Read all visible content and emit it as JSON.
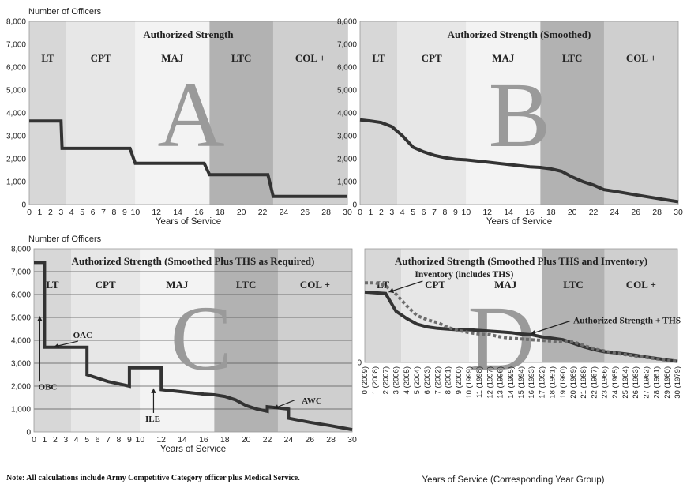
{
  "note": "Note: All calculations include Army Competitive Category officer plus Medical  Service.",
  "chart_data": [
    {
      "id": "A",
      "type": "line",
      "title": "Authorized Strength",
      "panel_letter": "A",
      "ylabel": "Number of Officers",
      "xlabel": "Years of Service",
      "xlim": [
        0,
        30
      ],
      "ylim": [
        0,
        8000
      ],
      "yticks": [
        "0",
        "1,000",
        "2,000",
        "3,000",
        "4,000",
        "5,000",
        "6,000",
        "7,000",
        "8,000"
      ],
      "xticks": [
        "0",
        "1",
        "2",
        "3",
        "4",
        "5",
        "6",
        "7",
        "8",
        "9",
        "10",
        "12",
        "14",
        "16",
        "18",
        "20",
        "22",
        "24",
        "26",
        "28",
        "30"
      ],
      "bands": [
        {
          "label": "LT",
          "x0": 0,
          "x1": 3.5
        },
        {
          "label": "CPT",
          "x0": 3.5,
          "x1": 10
        },
        {
          "label": "MAJ",
          "x0": 10,
          "x1": 17
        },
        {
          "label": "LTC",
          "x0": 17,
          "x1": 23
        },
        {
          "label": "COL +",
          "x0": 23,
          "x1": 30
        }
      ],
      "series": [
        {
          "x": [
            0,
            2,
            3,
            3.1,
            9,
            9.5,
            10,
            16,
            16.5,
            17,
            22,
            22.5,
            23,
            30
          ],
          "y": [
            3650,
            3650,
            3650,
            2450,
            2450,
            2450,
            1800,
            1800,
            1800,
            1300,
            1300,
            1300,
            350,
            350
          ]
        }
      ]
    },
    {
      "id": "B",
      "type": "line",
      "title": "Authorized Strength (Smoothed)",
      "panel_letter": "B",
      "ylabel": "",
      "xlabel": "Years of Service",
      "xlim": [
        0,
        30
      ],
      "ylim": [
        0,
        8000
      ],
      "yticks": [
        "0",
        "1,000",
        "2,000",
        "3,000",
        "4,000",
        "5,000",
        "6,000",
        "7,000",
        "8,000"
      ],
      "xticks": [
        "0",
        "1",
        "2",
        "3",
        "4",
        "5",
        "6",
        "7",
        "8",
        "9",
        "10",
        "12",
        "14",
        "16",
        "18",
        "20",
        "22",
        "24",
        "26",
        "28",
        "30"
      ],
      "bands": [
        {
          "label": "LT",
          "x0": 0,
          "x1": 3.5
        },
        {
          "label": "CPT",
          "x0": 3.5,
          "x1": 10
        },
        {
          "label": "MAJ",
          "x0": 10,
          "x1": 17
        },
        {
          "label": "LTC",
          "x0": 17,
          "x1": 23
        },
        {
          "label": "COL +",
          "x0": 23,
          "x1": 30
        }
      ],
      "series": [
        {
          "x": [
            0,
            1,
            2,
            3,
            4,
            5,
            6,
            7,
            8,
            9,
            10,
            12,
            14,
            16,
            17,
            18,
            19,
            20,
            21,
            22,
            23,
            24,
            26,
            28,
            30
          ],
          "y": [
            3700,
            3650,
            3580,
            3400,
            3000,
            2500,
            2300,
            2150,
            2050,
            1980,
            1950,
            1850,
            1750,
            1650,
            1620,
            1560,
            1450,
            1200,
            1000,
            850,
            650,
            580,
            420,
            270,
            120
          ]
        }
      ]
    },
    {
      "id": "C",
      "type": "line",
      "title": "Authorized Strength (Smoothed Plus THS as Required)",
      "panel_letter": "C",
      "ylabel": "Number of Officers",
      "xlabel": "Years of Service",
      "xlim": [
        0,
        30
      ],
      "ylim": [
        0,
        8000
      ],
      "yticks": [
        "0",
        "1,000",
        "2,000",
        "3,000",
        "4,000",
        "5,000",
        "6,000",
        "7,000",
        "8,000"
      ],
      "xticks": [
        "0",
        "1",
        "2",
        "3",
        "4",
        "5",
        "6",
        "7",
        "8",
        "9",
        "10",
        "12",
        "14",
        "16",
        "18",
        "20",
        "22",
        "24",
        "26",
        "28",
        "30"
      ],
      "bands": [
        {
          "label": "LT",
          "x0": 0,
          "x1": 3.5
        },
        {
          "label": "CPT",
          "x0": 3.5,
          "x1": 10
        },
        {
          "label": "MAJ",
          "x0": 10,
          "x1": 17
        },
        {
          "label": "LTC",
          "x0": 17,
          "x1": 23
        },
        {
          "label": "COL +",
          "x0": 23,
          "x1": 30
        }
      ],
      "series": [
        {
          "x": [
            0,
            0.9,
            1,
            1,
            5,
            5,
            6,
            7,
            8,
            9,
            9,
            12,
            12,
            14,
            16,
            17,
            18,
            19,
            20,
            21,
            22,
            22,
            24,
            24,
            26,
            28,
            30
          ],
          "y": [
            7400,
            7400,
            7400,
            3700,
            3700,
            2500,
            2350,
            2200,
            2100,
            2000,
            2800,
            2800,
            1850,
            1750,
            1650,
            1620,
            1550,
            1400,
            1150,
            1000,
            900,
            1100,
            1000,
            600,
            420,
            270,
            100
          ]
        }
      ],
      "annotations": [
        {
          "text": "OAC",
          "x": 4.6,
          "y": 4100
        },
        {
          "text": "OBC",
          "x": 1.3,
          "y": 1850
        },
        {
          "text": "ILE",
          "x": 11.2,
          "y": 450
        },
        {
          "text": "AWC",
          "x": 26.2,
          "y": 1250
        }
      ]
    },
    {
      "id": "D",
      "type": "line",
      "title": "Authorized Strength (Smoothed Plus THS and Inventory)",
      "panel_letter": "D",
      "ylabel": "",
      "xlabel": "Years of Service (Corresponding Year Group)",
      "xlim": [
        0,
        30
      ],
      "ylim": [
        0,
        8000
      ],
      "xticks": [
        "0 (2009)",
        "1 (2008)",
        "2 (2007)",
        "3 (2006)",
        "4 (2005)",
        "5 (2004)",
        "6 (2003)",
        "7 (2002)",
        "8 (2001)",
        "9 (2000)",
        "10 (1999)",
        "11 (1998)",
        "12 (1997)",
        "13 (1996)",
        "14 (1995)",
        "15 (1994)",
        "16 (1993)",
        "17 (1992)",
        "18 (1991)",
        "19 (1990)",
        "20 (1989)",
        "21 (1988)",
        "22 (1987)",
        "23 (1986)",
        "24 (1985)",
        "25 (1984)",
        "26 (1983)",
        "27 (1982)",
        "28 (1981)",
        "29 (1980)",
        "30 (1979)"
      ],
      "bands": [
        {
          "label": "LT",
          "x0": 0,
          "x1": 3.5
        },
        {
          "label": "CPT",
          "x0": 3.5,
          "x1": 10
        },
        {
          "label": "MAJ",
          "x0": 10,
          "x1": 17
        },
        {
          "label": "LTC",
          "x0": 17,
          "x1": 23
        },
        {
          "label": "COL +",
          "x0": 23,
          "x1": 30
        }
      ],
      "series": [
        {
          "name": "Authorized Strength + THS",
          "style": "solid",
          "x": [
            0,
            2,
            3,
            4,
            5,
            6,
            7,
            8,
            9,
            10,
            11,
            12,
            13,
            14,
            15,
            16,
            17,
            18,
            19,
            20,
            21,
            22,
            23,
            24,
            25,
            26,
            27,
            28,
            29,
            30
          ],
          "y": [
            4950,
            4850,
            3600,
            3100,
            2700,
            2500,
            2400,
            2350,
            2300,
            2300,
            2250,
            2200,
            2150,
            2100,
            2000,
            1950,
            1800,
            1700,
            1600,
            1350,
            1100,
            900,
            750,
            680,
            600,
            500,
            380,
            280,
            180,
            80
          ]
        },
        {
          "name": "Inventory (includes THS)",
          "style": "dotted",
          "x": [
            0,
            1,
            2,
            3,
            4,
            5,
            6,
            7,
            8,
            9,
            10,
            11,
            12,
            13,
            14,
            15,
            16,
            17,
            18,
            19,
            20,
            21,
            22,
            23,
            24,
            25,
            26,
            27,
            28,
            29,
            30
          ],
          "y": [
            5600,
            5600,
            5400,
            4800,
            4000,
            3300,
            3000,
            2800,
            2450,
            2250,
            2100,
            2000,
            1950,
            1800,
            1700,
            1650,
            1600,
            1550,
            1500,
            1450,
            1450,
            1200,
            950,
            800,
            650,
            550,
            450,
            350,
            250,
            150,
            100
          ]
        }
      ],
      "annotations": [
        {
          "text": "Inventory (includes THS)",
          "x": 4.8,
          "y": 6000
        },
        {
          "text": "Authorized Strength + THS",
          "x": 20,
          "y": 2750
        }
      ]
    }
  ]
}
